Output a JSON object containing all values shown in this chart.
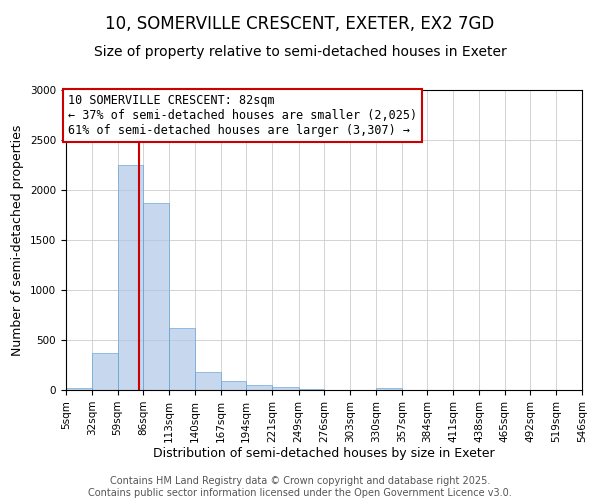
{
  "title": "10, SOMERVILLE CRESCENT, EXETER, EX2 7GD",
  "subtitle": "Size of property relative to semi-detached houses in Exeter",
  "xlabel": "Distribution of semi-detached houses by size in Exeter",
  "ylabel": "Number of semi-detached properties",
  "bin_edges": [
    5,
    32,
    59,
    86,
    113,
    140,
    167,
    194,
    221,
    249,
    276,
    303,
    330,
    357,
    384,
    411,
    438,
    465,
    492,
    519,
    546
  ],
  "bar_heights": [
    20,
    370,
    2250,
    1870,
    620,
    185,
    90,
    55,
    30,
    15,
    5,
    3,
    20,
    2,
    1,
    1,
    1,
    1,
    0,
    0
  ],
  "bar_color": "#aec6e8",
  "bar_edgecolor": "#5a9fd4",
  "bar_alpha": 0.7,
  "property_size": 82,
  "red_line_color": "#cc0000",
  "annotation_text": "10 SOMERVILLE CRESCENT: 82sqm\n← 37% of semi-detached houses are smaller (2,025)\n61% of semi-detached houses are larger (3,307) →",
  "annotation_box_color": "#ffffff",
  "annotation_box_edgecolor": "#cc0000",
  "ylim": [
    0,
    3000
  ],
  "yticks": [
    0,
    500,
    1000,
    1500,
    2000,
    2500,
    3000
  ],
  "background_color": "#ffffff",
  "grid_color": "#cccccc",
  "footer_text": "Contains HM Land Registry data © Crown copyright and database right 2025.\nContains public sector information licensed under the Open Government Licence v3.0.",
  "title_fontsize": 12,
  "subtitle_fontsize": 10,
  "annotation_fontsize": 8.5,
  "axis_label_fontsize": 9,
  "tick_fontsize": 7.5,
  "footer_fontsize": 7
}
